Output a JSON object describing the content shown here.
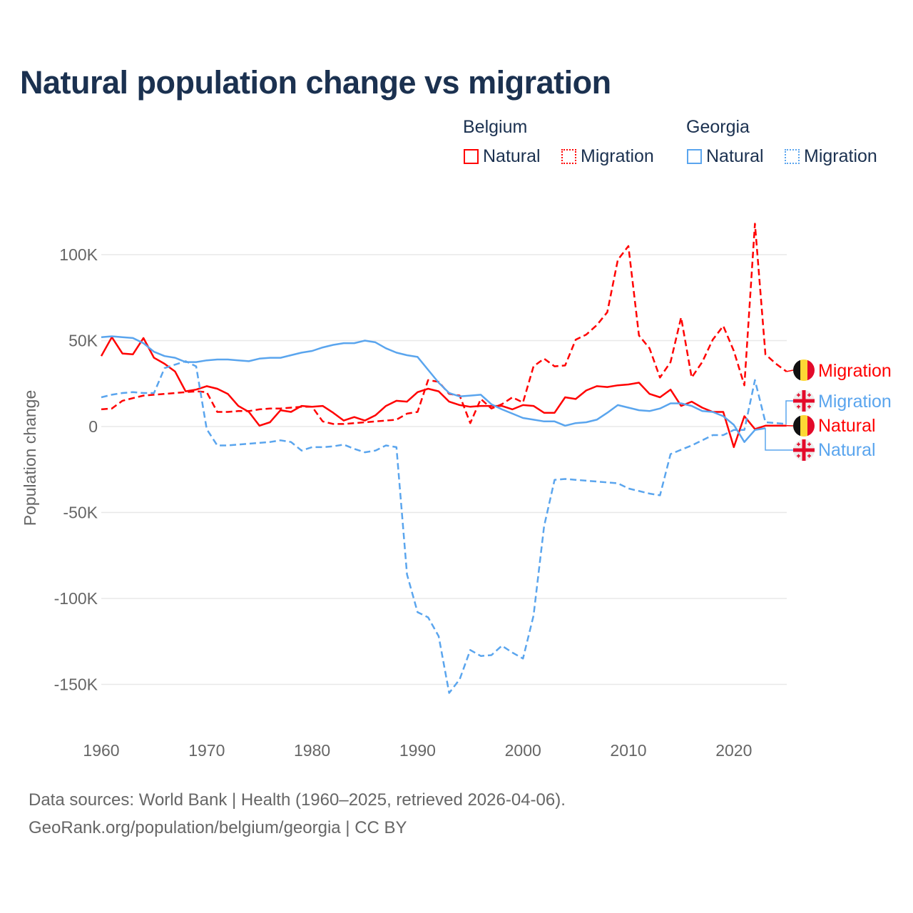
{
  "title": "Natural population change vs migration",
  "legend": {
    "groups": [
      {
        "name": "Belgium",
        "color": "#ff0000",
        "items": [
          "Natural",
          "Migration"
        ]
      },
      {
        "name": "Georgia",
        "color": "#5aa5ee",
        "items": [
          "Natural",
          "Migration"
        ]
      }
    ]
  },
  "footer": {
    "line1": "Data sources: World Bank | Health (1960–2025, retrieved 2026-04-06).",
    "line2": "GeoRank.org/population/belgium/georgia | CC BY"
  },
  "end_labels": {
    "be_migration": "Migration",
    "ge_migration": "Migration",
    "be_natural": "Natural",
    "ge_natural": "Natural"
  },
  "chart_data": {
    "type": "line",
    "title": "Natural population change vs migration",
    "xlabel": "",
    "ylabel": "Population change",
    "xlim": [
      1960,
      2025
    ],
    "ylim": [
      -170000,
      125000
    ],
    "grid": true,
    "legend_position": "top-right",
    "x_ticks": [
      1960,
      1970,
      1980,
      1990,
      2000,
      2010,
      2020
    ],
    "x_tick_labels": [
      "1960",
      "1970",
      "1980",
      "1990",
      "2000",
      "2010",
      "2020"
    ],
    "y_ticks": [
      100000,
      50000,
      0,
      -50000,
      -100000,
      -150000
    ],
    "y_tick_labels": [
      "100K",
      "50K",
      "0",
      "-50K",
      "-100K",
      "-150K"
    ],
    "start_year": 1960,
    "series": [
      {
        "name": "Belgium Natural",
        "color": "#ff0000",
        "dash": false,
        "values": [
          41000,
          52000,
          42500,
          42000,
          51500,
          40000,
          36500,
          32000,
          20500,
          21500,
          23500,
          22000,
          19000,
          12000,
          8500,
          500,
          2500,
          9500,
          8500,
          12000,
          11500,
          12000,
          8000,
          3500,
          5500,
          3500,
          6500,
          12000,
          15000,
          14500,
          20000,
          22000,
          20500,
          14500,
          12500,
          11500,
          12000,
          12000,
          12000,
          10000,
          12500,
          12000,
          8000,
          8000,
          17000,
          16000,
          21000,
          23500,
          23000,
          24000,
          24500,
          25500,
          19000,
          17000,
          21500,
          12000,
          14500,
          11000,
          8500,
          8500,
          -12000,
          6000,
          -1500,
          500,
          500,
          500
        ]
      },
      {
        "name": "Belgium Migration",
        "color": "#ff0000",
        "dash": true,
        "values": [
          10000,
          10500,
          15000,
          16500,
          18000,
          18500,
          19000,
          19500,
          20000,
          20500,
          20000,
          8500,
          8500,
          9000,
          9000,
          10000,
          10500,
          10500,
          11000,
          11500,
          11500,
          3000,
          1500,
          1500,
          2000,
          2500,
          3000,
          3500,
          4000,
          7500,
          8500,
          27000,
          26000,
          19000,
          18000,
          2000,
          16000,
          10500,
          13000,
          17000,
          14000,
          35000,
          39500,
          35000,
          35500,
          50500,
          53500,
          59000,
          66500,
          97000,
          105000,
          53000,
          45500,
          28500,
          37500,
          63500,
          28500,
          37500,
          50500,
          58500,
          44000,
          24000,
          118000,
          42000,
          36500,
          32000
        ]
      },
      {
        "name": "Georgia Natural",
        "color": "#5aa5ee",
        "dash": false,
        "values": [
          52000,
          52500,
          52000,
          51500,
          48500,
          43500,
          41000,
          40000,
          37500,
          37500,
          38500,
          39000,
          39000,
          38500,
          38000,
          39500,
          40000,
          40000,
          41500,
          43000,
          44000,
          46000,
          47500,
          48500,
          48500,
          50000,
          49000,
          45500,
          43000,
          41500,
          40500,
          33000,
          25500,
          19500,
          17500,
          18000,
          18500,
          13000,
          10000,
          7500,
          5000,
          4000,
          3000,
          3000,
          500,
          2000,
          2500,
          4000,
          8000,
          12500,
          11000,
          9500,
          9000,
          10500,
          13500,
          13500,
          12000,
          9000,
          8500,
          6000,
          1000,
          -9000,
          -2000,
          -1000
        ]
      },
      {
        "name": "Georgia Migration",
        "color": "#5aa5ee",
        "dash": true,
        "values": [
          17000,
          18500,
          19500,
          20000,
          19500,
          19500,
          34000,
          36000,
          38000,
          35000,
          -1500,
          -11000,
          -11000,
          -10500,
          -10000,
          -9500,
          -9000,
          -8000,
          -9000,
          -14000,
          -12000,
          -12000,
          -11500,
          -10500,
          -13000,
          -15000,
          -14000,
          -11000,
          -12000,
          -86000,
          -108000,
          -111000,
          -122000,
          -155000,
          -147000,
          -130000,
          -133500,
          -133000,
          -127500,
          -131500,
          -135000,
          -110000,
          -58000,
          -31000,
          -30500,
          -31000,
          -31500,
          -32000,
          -32500,
          -33000,
          -36000,
          -37500,
          -39000,
          -40000,
          -16000,
          -13500,
          -11000,
          -8000,
          -5000,
          -5000,
          -2000,
          -2000,
          27000,
          2500,
          2000,
          1500
        ]
      }
    ]
  }
}
